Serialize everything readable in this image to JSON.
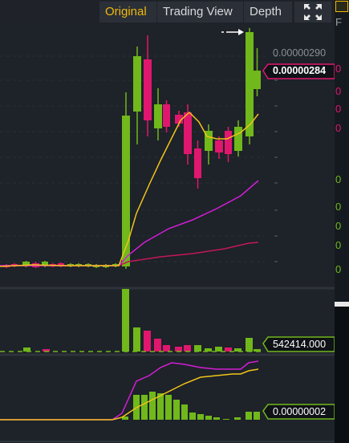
{
  "tabs": {
    "original": "Original",
    "trading_view": "Trading View",
    "depth": "Depth"
  },
  "price_axis": {
    "high_label": "0.00000290",
    "last_price": "0.00000284"
  },
  "volume": {
    "last_label": "542414.000"
  },
  "indicator": {
    "last_label": "0.00000002"
  },
  "right_panel": {
    "rows": [
      {
        "text": "F",
        "color": "#9aa0a6"
      },
      {
        "text": "0",
        "color": "#e0176e"
      },
      {
        "text": "0",
        "color": "#e0176e"
      },
      {
        "text": "0",
        "color": "#e0176e"
      },
      {
        "text": "0",
        "color": "#e0176e"
      },
      {
        "text": "0",
        "color": "#70b81b"
      },
      {
        "text": "0",
        "color": "#70b81b"
      },
      {
        "text": "0",
        "color": "#70b81b"
      },
      {
        "text": "0",
        "color": "#70b81b"
      },
      {
        "text": "0",
        "color": "#70b81b"
      }
    ]
  },
  "colors": {
    "up": "#70b81b",
    "down": "#e0176e",
    "ma_short": "#f0c419",
    "ma_mid": "#d21ed6",
    "ma_long": "#c2185b",
    "accent": "#f0b90b"
  },
  "chart_data": {
    "type": "candlestick",
    "price_ticks": [
      "0.00000290"
    ],
    "candles": [
      {
        "dir": "up"
      },
      {
        "dir": "down"
      },
      {
        "dir": "up"
      },
      {
        "dir": "up"
      },
      {
        "dir": "down"
      },
      {
        "dir": "up"
      },
      {
        "dir": "down"
      },
      {
        "dir": "up"
      },
      {
        "dir": "up"
      },
      {
        "dir": "up"
      },
      {
        "dir": "down"
      },
      {
        "dir": "up"
      },
      {
        "dir": "down"
      },
      {
        "dir": "up"
      },
      {
        "dir": "up"
      },
      {
        "dir": "down"
      },
      {
        "dir": "up"
      },
      {
        "dir": "up"
      },
      {
        "dir": "up"
      },
      {
        "dir": "down"
      },
      {
        "dir": "down"
      },
      {
        "dir": "down"
      },
      {
        "dir": "down"
      },
      {
        "dir": "down"
      },
      {
        "dir": "up"
      },
      {
        "dir": "up"
      },
      {
        "dir": "down"
      },
      {
        "dir": "up"
      },
      {
        "dir": "up"
      },
      {
        "dir": "up"
      },
      {
        "dir": "down"
      }
    ]
  }
}
